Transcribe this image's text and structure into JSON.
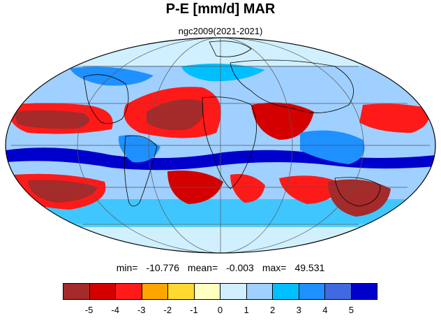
{
  "title": "P-E [mm/d] MAR",
  "subtitle": "ngc2009(2021-2021)",
  "stats": {
    "min_label": "min=",
    "min_value": "-10.776",
    "mean_label": "mean=",
    "mean_value": "-0.003",
    "max_label": "max=",
    "max_value": "49.531"
  },
  "colorbar": {
    "colors": [
      "#a52a2a",
      "#d40000",
      "#ff1a1a",
      "#ffa500",
      "#ffd92f",
      "#ffffc0",
      "#d0f0ff",
      "#a0d0ff",
      "#00bfff",
      "#1e90ff",
      "#4169e1",
      "#0000cd"
    ],
    "labels": [
      "-5",
      "-4",
      "-3",
      "-2",
      "-1",
      "0",
      "1",
      "2",
      "3",
      "4",
      "5"
    ]
  },
  "map": {
    "projection": "Mollweide",
    "ocean_fill": "#a0d0ff",
    "coastline_color": "#000000",
    "grid_color": "#555555"
  }
}
